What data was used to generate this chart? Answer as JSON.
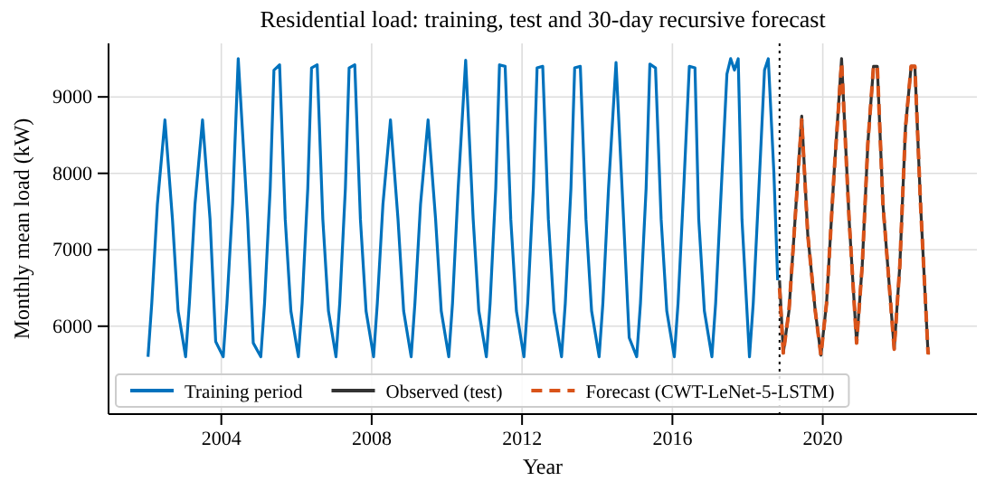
{
  "chart_data": {
    "type": "line",
    "title": "Residential load: training, test and 30-day recursive forecast",
    "xlabel": "Year",
    "ylabel": "Monthly mean load (kW)",
    "xlim": [
      2001,
      2024.1
    ],
    "xticks": [
      2004,
      2008,
      2012,
      2016,
      2020
    ],
    "ylim": [
      4850,
      9700
    ],
    "yticks": [
      6000,
      7000,
      8000,
      9000
    ],
    "grid": true,
    "legend": "bottom left",
    "series": [
      {
        "name": "Training period",
        "color": "#0072bd",
        "line_style": "solid",
        "x": [
          2002.05,
          2002.15,
          2002.3,
          2002.5,
          2002.7,
          2002.85,
          2003.05,
          2003.15,
          2003.3,
          2003.5,
          2003.7,
          2003.85,
          2004.05,
          2004.15,
          2004.3,
          2004.45,
          2004.7,
          2004.85,
          2005.05,
          2005.15,
          2005.3,
          2005.4,
          2005.55,
          2005.7,
          2005.85,
          2006.05,
          2006.15,
          2006.3,
          2006.4,
          2006.55,
          2006.7,
          2006.85,
          2007.05,
          2007.15,
          2007.3,
          2007.4,
          2007.55,
          2007.7,
          2007.85,
          2008.05,
          2008.15,
          2008.3,
          2008.5,
          2008.7,
          2008.85,
          2009.05,
          2009.15,
          2009.3,
          2009.5,
          2009.7,
          2009.85,
          2010.05,
          2010.15,
          2010.3,
          2010.5,
          2010.7,
          2010.85,
          2011.05,
          2011.15,
          2011.3,
          2011.4,
          2011.55,
          2011.7,
          2011.85,
          2012.05,
          2012.15,
          2012.3,
          2012.4,
          2012.55,
          2012.7,
          2012.85,
          2013.05,
          2013.15,
          2013.3,
          2013.4,
          2013.55,
          2013.7,
          2013.85,
          2014.05,
          2014.15,
          2014.3,
          2014.5,
          2014.7,
          2014.85,
          2015.05,
          2015.15,
          2015.3,
          2015.4,
          2015.55,
          2015.7,
          2015.85,
          2016.05,
          2016.15,
          2016.3,
          2016.45,
          2016.6,
          2016.7,
          2016.85,
          2017.05,
          2017.15,
          2017.3,
          2017.45,
          2017.55,
          2017.65,
          2017.75,
          2017.85,
          2018.05,
          2018.15,
          2018.3,
          2018.45,
          2018.55,
          2018.7,
          2018.8
        ],
        "values": [
          5600,
          6300,
          7600,
          8700,
          7400,
          6200,
          5600,
          6300,
          7600,
          8700,
          7400,
          5800,
          5600,
          6300,
          7600,
          9500,
          7400,
          5780,
          5600,
          6300,
          7800,
          9350,
          9420,
          7400,
          6200,
          5600,
          6300,
          7800,
          9380,
          9420,
          7400,
          6200,
          5600,
          6300,
          7800,
          9380,
          9420,
          7400,
          6200,
          5600,
          6300,
          7600,
          8700,
          7400,
          6200,
          5600,
          6300,
          7600,
          8700,
          7400,
          6200,
          5600,
          6300,
          7800,
          9480,
          7400,
          6200,
          5600,
          6300,
          7800,
          9420,
          9400,
          7400,
          6200,
          5600,
          6300,
          7800,
          9380,
          9400,
          7400,
          6200,
          5600,
          6300,
          7800,
          9380,
          9400,
          7400,
          6200,
          5600,
          6300,
          7800,
          9450,
          7400,
          5850,
          5600,
          6300,
          7800,
          9430,
          9380,
          7400,
          6200,
          5600,
          6300,
          7800,
          9400,
          9380,
          7400,
          6200,
          5600,
          6300,
          7800,
          9300,
          9500,
          9350,
          9500,
          7400,
          5600,
          6300,
          7800,
          9350,
          9500,
          8000,
          6600
        ]
      },
      {
        "name": "Observed (test)",
        "color": "#333333",
        "line_style": "solid",
        "x": [
          2018.85,
          2018.95,
          2019.1,
          2019.25,
          2019.44,
          2019.6,
          2019.8,
          2019.95,
          2020.1,
          2020.3,
          2020.5,
          2020.7,
          2020.9,
          2021.05,
          2021.2,
          2021.35,
          2021.45,
          2021.6,
          2021.9,
          2022.05,
          2022.2,
          2022.35,
          2022.45,
          2022.6,
          2022.8,
          2022.85
        ],
        "values": [
          6600,
          5650,
          6200,
          7300,
          8750,
          7200,
          6200,
          5620,
          6300,
          8000,
          9500,
          7400,
          5780,
          6800,
          8400,
          9400,
          9400,
          7600,
          5700,
          6800,
          8600,
          9400,
          9400,
          7600,
          5650,
          5650
        ]
      },
      {
        "name": "Forecast (CWT-LeNet-5-LSTM)",
        "color": "#d95319",
        "line_style": "dashed",
        "x": [
          2018.85,
          2018.95,
          2019.1,
          2019.25,
          2019.44,
          2019.6,
          2019.8,
          2019.95,
          2020.1,
          2020.3,
          2020.5,
          2020.7,
          2020.9,
          2021.05,
          2021.2,
          2021.35,
          2021.45,
          2021.6,
          2021.9,
          2022.05,
          2022.2,
          2022.35,
          2022.45,
          2022.6,
          2022.8,
          2022.85
        ],
        "values": [
          6500,
          5650,
          6200,
          7300,
          8700,
          7200,
          6200,
          5620,
          6300,
          8000,
          9450,
          7400,
          5780,
          6800,
          8400,
          9400,
          9400,
          7600,
          5700,
          6800,
          8600,
          9400,
          9400,
          7600,
          5650,
          5650
        ]
      }
    ],
    "ref_lines": [
      {
        "axis": "x",
        "value": 2018.85,
        "color": "#000000",
        "line_style": "dotted"
      }
    ]
  }
}
